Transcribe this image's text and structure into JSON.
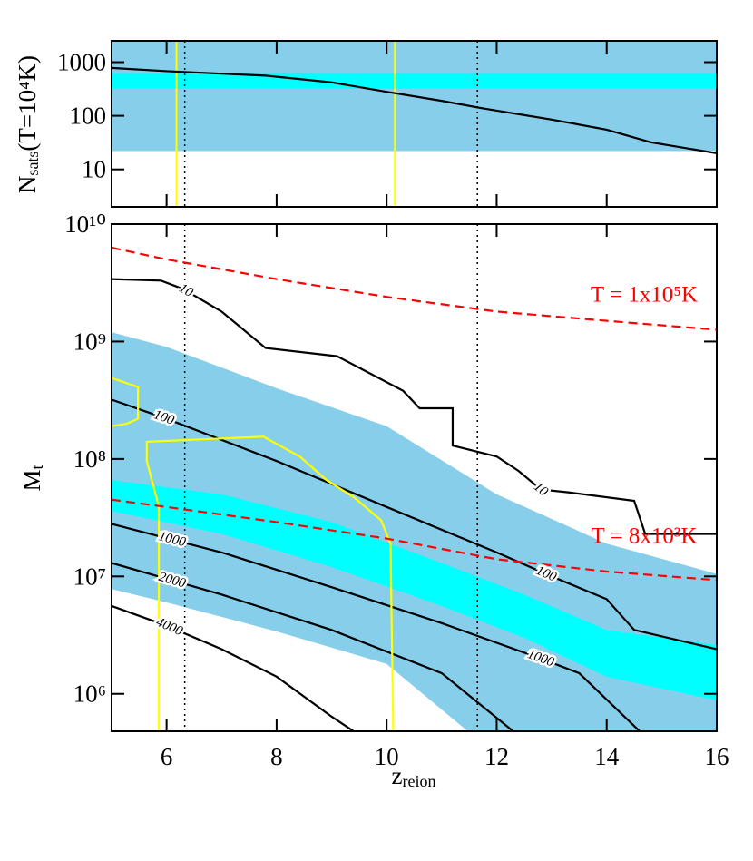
{
  "chart_data": [
    {
      "type": "line",
      "ylabel": {
        "base": "N",
        "sub": "sats",
        "rest": "(T=10⁴K)"
      },
      "xlim": [
        5,
        16
      ],
      "ylim": [
        2,
        2500
      ],
      "yscale": "log",
      "yticks": [
        10,
        100,
        1000
      ],
      "bands": [
        {
          "color": "#87ceeb",
          "range": [
            22,
            2500
          ]
        },
        {
          "color": "#00ffff",
          "range": [
            320,
            620
          ]
        }
      ],
      "vlines": [
        {
          "x": 6.18,
          "color": "#ffff00",
          "style": "solid"
        },
        {
          "x": 10.15,
          "color": "#ffff00",
          "style": "solid"
        },
        {
          "x": 6.33,
          "color": "#000000",
          "style": "dotted"
        },
        {
          "x": 11.65,
          "color": "#000000",
          "style": "dotted"
        }
      ],
      "series": [
        {
          "color": "#000000",
          "style": "solid",
          "x": [
            5,
            6,
            7,
            7.8,
            9,
            10,
            11,
            11.7,
            13,
            14,
            14.8,
            16
          ],
          "values": [
            780,
            680,
            610,
            560,
            420,
            280,
            190,
            140,
            85,
            55,
            32,
            20
          ]
        }
      ]
    },
    {
      "type": "line",
      "xlabel": {
        "base": "z",
        "sub": "reion"
      },
      "ylabel": {
        "base": "M",
        "sub": "t"
      },
      "xlim": [
        5,
        16
      ],
      "xticks": [
        6,
        8,
        10,
        12,
        14,
        16
      ],
      "ylim": [
        480000,
        10000000000
      ],
      "yscale": "log",
      "yticks": [
        {
          "value": 1000000,
          "label": "10⁶"
        },
        {
          "value": 10000000,
          "label": "10⁷"
        },
        {
          "value": 100000000,
          "label": "10⁸"
        },
        {
          "value": 1000000000,
          "label": "10⁹"
        },
        {
          "value": 10000000000,
          "label": "10¹⁰"
        }
      ],
      "areas": [
        {
          "color": "#87ceeb",
          "x": [
            5,
            6,
            8,
            10,
            12,
            14,
            16
          ],
          "upper": [
            1200000000,
            900000000,
            400000000,
            190000000,
            50000000,
            19000000,
            10500000
          ],
          "lower": [
            7800000,
            6000000,
            3400000,
            1800000,
            300000,
            300000,
            300000
          ]
        },
        {
          "color": "#00ffff",
          "x": [
            5,
            7,
            9,
            11,
            12.5,
            14,
            16
          ],
          "upper": [
            66000000,
            50000000,
            29000000,
            13000000,
            7000000,
            3500000,
            2600000
          ],
          "lower": [
            36000000,
            23000000,
            12000000,
            5600000,
            3000000,
            1400000,
            880000
          ]
        }
      ],
      "vlines": [
        {
          "x": 6.33,
          "color": "#000000",
          "style": "dotted"
        },
        {
          "x": 11.65,
          "color": "#000000",
          "style": "dotted"
        }
      ],
      "series": [
        {
          "label": "10",
          "color": "#000000",
          "style": "solid",
          "x": [
            5,
            5.9,
            6.3,
            7.0,
            7.8,
            9.1,
            10.3,
            10.6,
            11.2,
            11.2,
            12.0,
            12.4,
            12.8,
            13.3,
            14.5,
            14.7,
            16
          ],
          "values": [
            3400000000,
            3300000000,
            2800000000,
            1800000000,
            880000000,
            750000000,
            380000000,
            270000000,
            270000000,
            130000000,
            105000000,
            79000000,
            55000000,
            52000000,
            44000000,
            23000000,
            23000000
          ]
        },
        {
          "label": "100",
          "color": "#000000",
          "style": "solid",
          "x": [
            5,
            6,
            8,
            10,
            12,
            13,
            14,
            14.5,
            16
          ],
          "values": [
            320000000,
            220000000,
            96000000,
            39000000,
            16000000,
            10000000,
            6400000,
            3500000,
            2400000
          ]
        },
        {
          "label": "1000",
          "color": "#000000",
          "style": "solid",
          "x": [
            5,
            7,
            9,
            11,
            12.8,
            13.5,
            14.6
          ],
          "values": [
            28000000,
            16000000,
            8100000,
            4000000,
            2000000,
            1500000,
            480000
          ]
        },
        {
          "label": "2000",
          "color": "#000000",
          "style": "solid",
          "x": [
            5,
            7,
            9,
            11,
            12.3
          ],
          "values": [
            13000000,
            7000000,
            3500000,
            1500000,
            480000
          ]
        },
        {
          "label": "4000",
          "color": "#000000",
          "style": "solid",
          "x": [
            5,
            6,
            7,
            8,
            9,
            9.4
          ],
          "values": [
            5600000,
            3800000,
            2400000,
            1400000,
            640000,
            480000
          ]
        },
        {
          "color": "#ffff00",
          "style": "solid",
          "x": [
            5,
            5.48,
            5.48,
            5.28,
            5
          ],
          "values": [
            490000000,
            410000000,
            220000000,
            200000000,
            190000000
          ]
        },
        {
          "color": "#ffff00",
          "style": "solid",
          "x": [
            5.86,
            5.86,
            5.64,
            5.64,
            7.76,
            8.42,
            8.91,
            9.41,
            9.9,
            10.07,
            10.12
          ],
          "values": [
            480000,
            39000000,
            96000000,
            140000000,
            155000000,
            105000000,
            66000000,
            47000000,
            30000000,
            19000000,
            480000
          ]
        },
        {
          "color": "#ff0000",
          "style": "dashed",
          "x": [
            5,
            6,
            8,
            10,
            12,
            14,
            16
          ],
          "values": [
            6300000000,
            5000000000,
            3400000000,
            2400000000,
            1800000000,
            1500000000,
            1260000000
          ]
        },
        {
          "color": "#ff0000",
          "style": "dashed",
          "x": [
            5,
            6,
            8,
            10,
            12,
            14,
            16
          ],
          "values": [
            45000000,
            39000000,
            29000000,
            21000000,
            14000000,
            11000000,
            9300000
          ]
        }
      ],
      "annotations": [
        {
          "text": "T = 1x10⁵K",
          "color": "#ff0000"
        },
        {
          "text": "T = 8x10³K",
          "color": "#ff0000"
        }
      ]
    }
  ]
}
